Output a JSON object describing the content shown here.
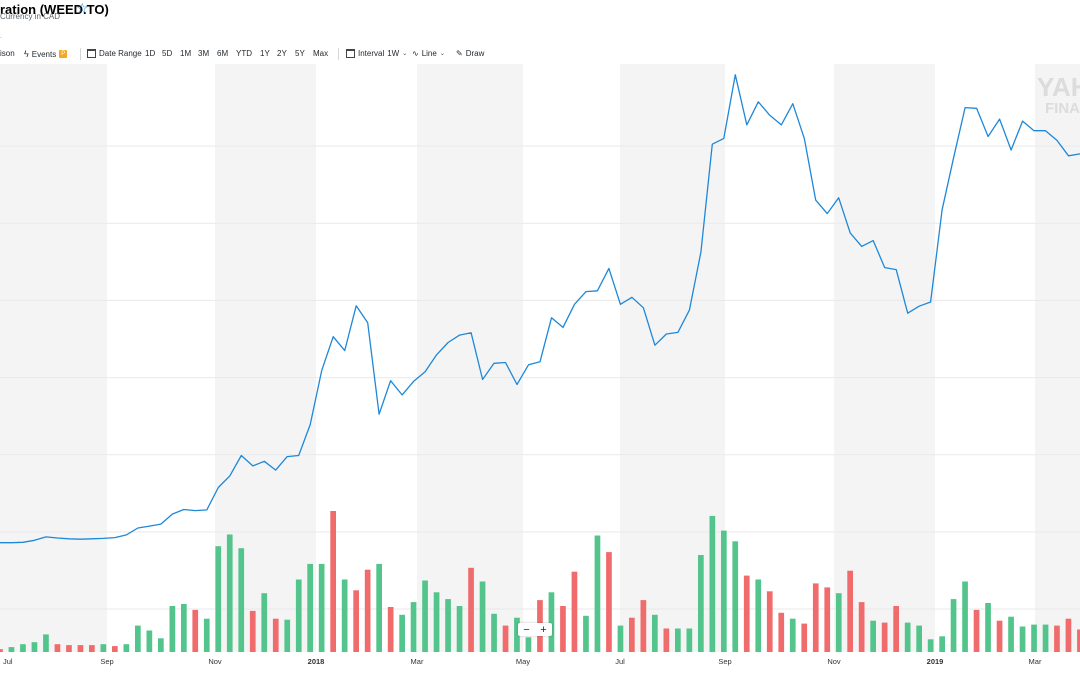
{
  "header": {
    "title": "ration (WEED.TO)",
    "currency": "Currency in CAD",
    "star_icon": "star-outline-icon",
    "stub": "."
  },
  "toolbar": {
    "comparison": "ison",
    "events": "Events",
    "events_badge": "P",
    "date_range": "Date Range",
    "ranges": [
      "1D",
      "5D",
      "1M",
      "3M",
      "6M",
      "YTD",
      "1Y",
      "2Y",
      "5Y",
      "Max"
    ],
    "interval_label": "Interval",
    "interval_value": "1W",
    "chart_type": "Line",
    "draw": "Draw",
    "icons": [
      "lightning-icon",
      "calendar-icon",
      "interval-icon",
      "line-chart-icon",
      "pencil-icon",
      "chevron-down-icon"
    ]
  },
  "watermark": {
    "line1": "YAH",
    "line2": "FINA"
  },
  "zoom": {
    "minus": "−",
    "plus": "+"
  },
  "colors": {
    "line": "#1e88d8",
    "volume_up": "#53c48b",
    "volume_down": "#f06c6c",
    "band": "#f4f4f4",
    "grid": "#e9e9e9"
  },
  "chart_data": {
    "type": "line",
    "title": "",
    "x_tick_labels": [
      "Jul",
      "Sep",
      "Nov",
      "2018",
      "Mar",
      "May",
      "Jul",
      "Sep",
      "Nov",
      "2019",
      "Mar"
    ],
    "grid": true,
    "series": [
      {
        "values": [
          17.2,
          17.2,
          17.3,
          17.8,
          18.7,
          18.4,
          18.2,
          18.1,
          18.2,
          18.3,
          18.5,
          19.2,
          21.0,
          21.5,
          22.0,
          24.6,
          25.8,
          25.5,
          25.7,
          31.5,
          34.5,
          39.8,
          37.1,
          38.3,
          36.0,
          39.5,
          39.8,
          47.8,
          61.8,
          70.6,
          67.0,
          78.6,
          74.2,
          50.5,
          59.2,
          55.5,
          59.0,
          61.5,
          65.9,
          69.1,
          71.0,
          71.6,
          59.5,
          63.7,
          63.9,
          58.2,
          63.3,
          64.1,
          75.5,
          73.0,
          79.0,
          82.3,
          82.5,
          88.3,
          79.0,
          80.8,
          78.1,
          68.4,
          71.3,
          71.7,
          77.5,
          92.5,
          120.5,
          122.0,
          138.5,
          125.5,
          131.5,
          128.0,
          125.5,
          131.0,
          122.0,
          106.0,
          102.5,
          106.6,
          97.5,
          94.0,
          95.5,
          88.5,
          88.0,
          76.7,
          78.5,
          79.6,
          103.5,
          117.0,
          130.0,
          129.8,
          122.5,
          127.0,
          119.0,
          126.5,
          124.0,
          124.0,
          121.5,
          117.5,
          118.0
        ]
      }
    ],
    "volume_series": {
      "values": [
        0.3,
        0.5,
        0.8,
        1.0,
        1.8,
        0.8,
        0.7,
        0.7,
        0.7,
        0.8,
        0.6,
        0.8,
        2.7,
        2.2,
        1.4,
        4.7,
        4.9,
        4.3,
        3.4,
        10.8,
        12.0,
        10.6,
        4.2,
        6.0,
        3.4,
        3.3,
        7.4,
        9.0,
        9.0,
        14.4,
        7.4,
        6.3,
        8.4,
        9.0,
        4.6,
        3.8,
        5.1,
        7.3,
        6.1,
        5.4,
        4.7,
        8.6,
        7.2,
        3.9,
        2.7,
        3.5,
        1.5,
        5.3,
        6.1,
        4.7,
        8.2,
        3.7,
        11.9,
        10.2,
        2.7,
        3.5,
        5.3,
        3.8,
        2.4,
        2.4,
        2.4,
        9.9,
        13.9,
        12.4,
        11.3,
        7.8,
        7.4,
        6.2,
        4.0,
        3.4,
        2.9,
        7.0,
        6.6,
        6.0,
        8.3,
        5.1,
        3.2,
        3.0,
        4.7,
        3.0,
        2.7,
        1.3,
        1.6,
        5.4,
        7.2,
        4.3,
        5.0,
        3.2,
        3.6,
        2.6,
        2.8,
        2.8,
        2.7,
        3.4,
        2.3
      ],
      "direction": [
        "d",
        "u",
        "u",
        "u",
        "u",
        "d",
        "d",
        "d",
        "d",
        "u",
        "d",
        "u",
        "u",
        "u",
        "u",
        "u",
        "u",
        "d",
        "u",
        "u",
        "u",
        "u",
        "d",
        "u",
        "d",
        "u",
        "u",
        "u",
        "u",
        "d",
        "u",
        "d",
        "d",
        "u",
        "d",
        "u",
        "u",
        "u",
        "u",
        "u",
        "u",
        "d",
        "u",
        "u",
        "d",
        "u",
        "u",
        "d",
        "u",
        "d",
        "d",
        "u",
        "u",
        "d",
        "u",
        "d",
        "d",
        "u",
        "d",
        "u",
        "u",
        "u",
        "u",
        "u",
        "u",
        "d",
        "u",
        "d",
        "d",
        "u",
        "d",
        "d",
        "d",
        "u",
        "d",
        "d",
        "u",
        "d",
        "d",
        "u",
        "u",
        "u",
        "u",
        "u",
        "u",
        "d",
        "u",
        "d",
        "u",
        "u",
        "u",
        "u",
        "d",
        "d",
        "d"
      ]
    }
  }
}
